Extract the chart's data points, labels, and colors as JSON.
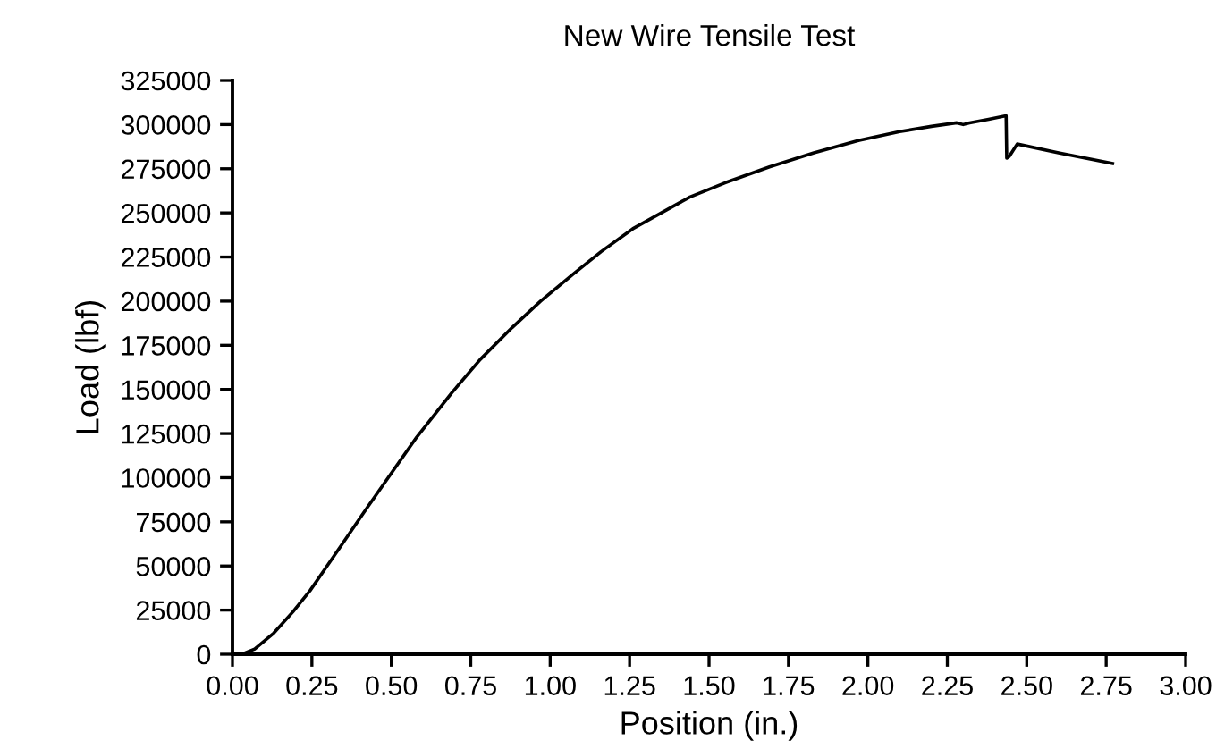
{
  "chart_data": {
    "type": "line",
    "title": "New Wire Tensile Test",
    "xlabel": "Position (in.)",
    "ylabel": "Load (lbf)",
    "x": [
      0,
      0.03,
      0.07,
      0.13,
      0.19,
      0.244,
      0.29,
      0.34,
      0.42,
      0.49,
      0.58,
      0.69,
      0.78,
      0.88,
      0.97,
      1.07,
      1.16,
      1.26,
      1.35,
      1.44,
      1.55,
      1.69,
      1.83,
      1.97,
      2.1,
      2.2,
      2.28,
      2.3,
      2.32,
      2.38,
      2.435,
      2.437,
      2.445,
      2.47,
      2.6,
      2.77
    ],
    "values": [
      0,
      0,
      3000,
      12000,
      24000,
      36000,
      48000,
      61000,
      82000,
      100000,
      123000,
      148000,
      167000,
      185000,
      200000,
      215000,
      228000,
      241000,
      250000,
      259000,
      267000,
      276000,
      284000,
      291000,
      296000,
      299000,
      301000,
      300000,
      301000,
      303000,
      305000,
      281000,
      282000,
      289000,
      284000,
      278000
    ],
    "color": "#000000",
    "xlim": [
      0,
      3
    ],
    "xticks": [
      {
        "value": 0,
        "label": "0.00"
      },
      {
        "value": 0.25,
        "label": "0.25"
      },
      {
        "value": 0.5,
        "label": "0.50"
      },
      {
        "value": 0.75,
        "label": "0.75"
      },
      {
        "value": 1,
        "label": "1.00"
      },
      {
        "value": 1.25,
        "label": "1.25"
      },
      {
        "value": 1.5,
        "label": "1.50"
      },
      {
        "value": 1.75,
        "label": "1.75"
      },
      {
        "value": 2,
        "label": "2.00"
      },
      {
        "value": 2.25,
        "label": "2.25"
      },
      {
        "value": 2.5,
        "label": "2.50"
      },
      {
        "value": 2.75,
        "label": "2.75"
      },
      {
        "value": 3,
        "label": "3.00"
      }
    ],
    "ylim": [
      0,
      325000
    ],
    "yticks": [
      0,
      25000,
      50000,
      75000,
      100000,
      125000,
      150000,
      175000,
      200000,
      225000,
      250000,
      275000,
      300000,
      325000
    ],
    "grid": false,
    "marker": "none",
    "line_style": "solid"
  }
}
